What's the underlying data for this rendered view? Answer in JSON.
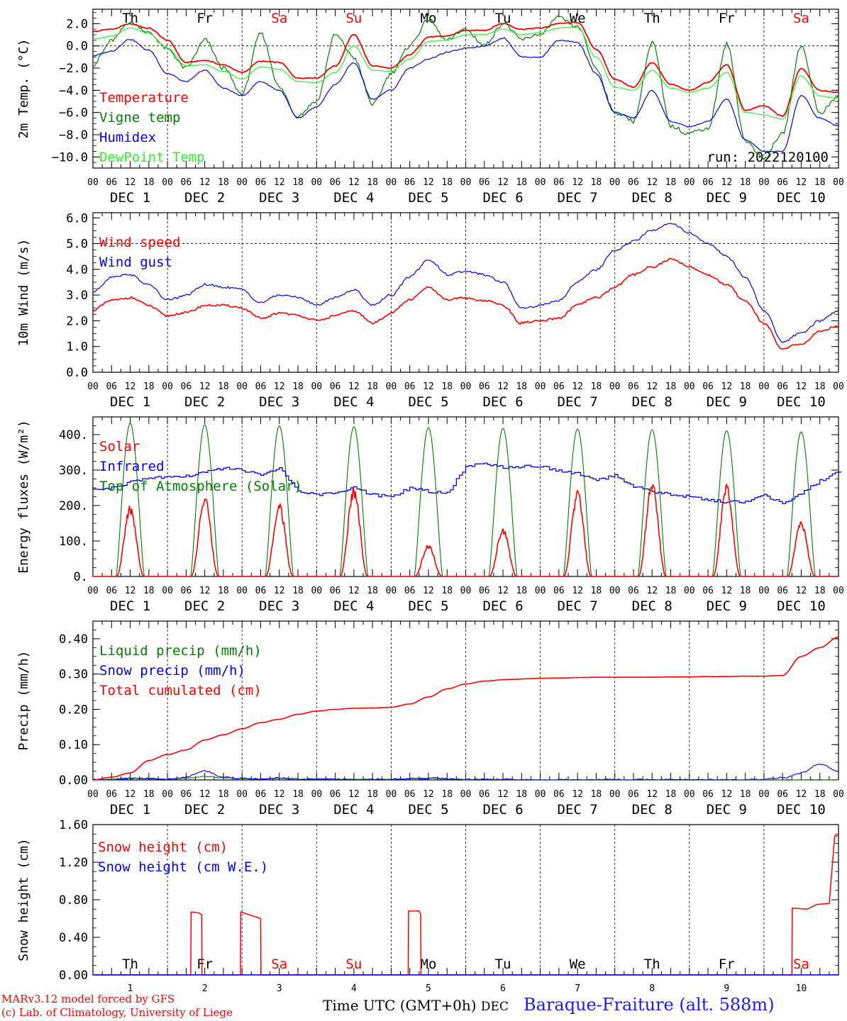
{
  "footer": {
    "model_credit": "MARv3.12 model forced by GFS",
    "lab_credit": "(c) Lab. of Climatology, University of Liege",
    "time_label": "Time UTC (GMT+0h)",
    "dec_label": "DEC",
    "station": "Baraque-Fraiture (alt. 588m)"
  },
  "run_label": "run: 2022120100",
  "hour_ticks": [
    "00",
    "06",
    "12",
    "18"
  ],
  "end_tick": "00",
  "day_labels": [
    "DEC  1",
    "DEC  2",
    "DEC  3",
    "DEC  4",
    "DEC  5",
    "DEC  6",
    "DEC  7",
    "DEC  8",
    "DEC  9",
    "DEC 10"
  ],
  "weekdays": [
    {
      "label": "Th",
      "color": "#000000"
    },
    {
      "label": "Fr",
      "color": "#000000"
    },
    {
      "label": "Sa",
      "color": "#ff0000"
    },
    {
      "label": "Su",
      "color": "#ff0000"
    },
    {
      "label": "Mo",
      "color": "#000000"
    },
    {
      "label": "Tu",
      "color": "#000000"
    },
    {
      "label": "We",
      "color": "#000000"
    },
    {
      "label": "Th",
      "color": "#000000"
    },
    {
      "label": "Fr",
      "color": "#000000"
    },
    {
      "label": "Sa",
      "color": "#ff0000"
    }
  ],
  "day_numbers": [
    "1",
    "2",
    "3",
    "4",
    "5",
    "6",
    "7",
    "8",
    "9",
    "10"
  ],
  "chart_data": [
    {
      "type": "line",
      "ylabel": "2m Temp. (°C)",
      "ylim": [
        -11,
        3.3
      ],
      "yticks": [
        2.0,
        0.0,
        -2.0,
        -4.0,
        -6.0,
        -8.0,
        -10.0
      ],
      "ytick_labels": [
        "2.0",
        "0.0",
        "−2.0",
        "−4.0",
        "−6.0",
        "−8.0",
        "−10.0"
      ],
      "reference_line": 0,
      "x_hours": [
        0,
        6,
        12,
        18,
        24,
        30,
        36,
        42,
        48,
        54,
        60,
        66,
        72,
        78,
        84,
        90,
        96,
        102,
        108,
        114,
        120,
        126,
        132,
        138,
        144,
        150,
        156,
        162,
        168,
        174,
        180,
        186,
        192,
        198,
        204,
        210,
        216,
        222,
        228,
        234,
        240
      ],
      "series": [
        {
          "name": "Temperature",
          "color": "#ff0000",
          "values": [
            1.3,
            1.5,
            2.0,
            1.6,
            0.5,
            -1.5,
            -1.3,
            -1.7,
            -2.4,
            -1.4,
            -1.5,
            -2.9,
            -2.9,
            -1.8,
            1.0,
            -1.8,
            -2.0,
            -0.8,
            0.8,
            0.9,
            1.4,
            1.4,
            2.0,
            1.5,
            1.6,
            2.0,
            2.1,
            -0.3,
            -3.0,
            -3.7,
            -1.5,
            -3.5,
            -4.0,
            -3.3,
            -1.7,
            -5.8,
            -5.4,
            -6.3,
            -2.0,
            -4.0,
            -4.2
          ]
        },
        {
          "name": "Vigne temp",
          "color": "#008000",
          "values": [
            -1.8,
            0.5,
            2.2,
            1.2,
            -0.3,
            -2.0,
            0.5,
            -2.1,
            -4.3,
            1.2,
            -3.7,
            -6.3,
            -5.0,
            1.0,
            -1.0,
            -5.3,
            -2.5,
            0.0,
            2.3,
            0.5,
            1.5,
            0.0,
            2.0,
            0.5,
            1.0,
            2.6,
            1.7,
            -2.0,
            -6.0,
            -6.8,
            0.3,
            -7.2,
            -7.8,
            -7.5,
            0.1,
            -8.5,
            -10.0,
            -8.0,
            0.0,
            -6.0,
            -4.5
          ]
        },
        {
          "name": "Humidex",
          "color": "#0000ff",
          "values": [
            -0.9,
            -0.5,
            0.6,
            -0.4,
            -2.5,
            -3.2,
            -2.2,
            -3.8,
            -4.5,
            -3.2,
            -4.0,
            -6.5,
            -5.5,
            -3.5,
            -1.5,
            -4.8,
            -4.0,
            -2.0,
            -1.2,
            -0.6,
            -0.2,
            0.0,
            0.7,
            -1.0,
            -1.0,
            0.5,
            0.3,
            -2.5,
            -6.0,
            -6.5,
            -4.0,
            -6.8,
            -7.3,
            -6.8,
            -4.8,
            -8.5,
            -9.5,
            -9.5,
            -4.5,
            -6.5,
            -7.2
          ]
        },
        {
          "name": "DewPoint Temp",
          "color": "#33ee33",
          "values": [
            0.6,
            0.9,
            1.6,
            1.1,
            -0.2,
            -1.8,
            -1.7,
            -2.3,
            -3.0,
            -1.9,
            -2.1,
            -3.2,
            -3.3,
            -2.4,
            0.0,
            -2.2,
            -2.3,
            -1.2,
            0.4,
            0.5,
            1.0,
            1.0,
            1.5,
            1.0,
            1.2,
            1.6,
            1.7,
            -1.0,
            -3.7,
            -4.0,
            -2.2,
            -3.8,
            -4.2,
            -3.8,
            -2.4,
            -6.0,
            -6.2,
            -6.6,
            -2.7,
            -4.5,
            -4.7
          ]
        }
      ]
    },
    {
      "type": "line",
      "ylabel": "10m Wind (m/s)",
      "ylim": [
        0,
        6.2
      ],
      "yticks": [
        0,
        1,
        2,
        3,
        4,
        5,
        6
      ],
      "ytick_labels": [
        "0.0",
        "1.0",
        "2.0",
        "3.0",
        "4.0",
        "5.0",
        "6.0"
      ],
      "reference_line": 5,
      "x_hours": [
        0,
        6,
        12,
        18,
        24,
        30,
        36,
        42,
        48,
        54,
        60,
        66,
        72,
        78,
        84,
        90,
        96,
        102,
        108,
        114,
        120,
        126,
        132,
        138,
        144,
        150,
        156,
        162,
        168,
        174,
        180,
        186,
        192,
        198,
        204,
        210,
        216,
        222,
        228,
        234,
        240
      ],
      "series": [
        {
          "name": "Wind speed",
          "color": "#ff0000",
          "values": [
            2.4,
            2.8,
            2.9,
            2.6,
            2.2,
            2.3,
            2.6,
            2.6,
            2.5,
            2.1,
            2.3,
            2.2,
            2.0,
            2.2,
            2.4,
            1.9,
            2.3,
            2.8,
            3.3,
            2.8,
            2.9,
            2.8,
            2.6,
            1.9,
            2.0,
            2.1,
            2.6,
            2.9,
            3.3,
            3.8,
            4.1,
            4.4,
            4.1,
            3.8,
            3.4,
            2.8,
            1.9,
            0.9,
            1.1,
            1.6,
            1.8
          ]
        },
        {
          "name": "Wind gust",
          "color": "#0000ff",
          "values": [
            3.1,
            3.7,
            3.8,
            3.4,
            2.8,
            3.0,
            3.4,
            3.3,
            3.2,
            2.7,
            3.0,
            2.9,
            2.6,
            2.9,
            3.2,
            2.6,
            3.0,
            3.7,
            4.4,
            3.8,
            3.9,
            3.8,
            3.5,
            2.5,
            2.6,
            2.8,
            3.5,
            4.0,
            4.7,
            5.1,
            5.5,
            5.8,
            5.4,
            5.0,
            4.5,
            3.7,
            2.4,
            1.2,
            1.5,
            2.0,
            2.4
          ]
        }
      ]
    },
    {
      "type": "line",
      "ylabel": "Energy fluxes (W/m²)",
      "ylim": [
        0,
        450
      ],
      "yticks": [
        0,
        100,
        200,
        300,
        400
      ],
      "ytick_labels": [
        "0.",
        "100.",
        "200.",
        "300.",
        "400."
      ],
      "daily_peaks": {
        "toa_solar": [
          432,
          428,
          425,
          422,
          420,
          418,
          416,
          414,
          411,
          408
        ],
        "solar": [
          190,
          215,
          195,
          240,
          85,
          130,
          230,
          260,
          245,
          150
        ]
      },
      "daylight_hours": [
        7.5,
        16.5
      ],
      "x_hours": [
        0,
        6,
        12,
        18,
        24,
        30,
        36,
        42,
        48,
        54,
        60,
        66,
        72,
        78,
        84,
        90,
        96,
        102,
        108,
        114,
        120,
        126,
        132,
        138,
        144,
        150,
        156,
        162,
        168,
        174,
        180,
        186,
        192,
        198,
        204,
        210,
        216,
        222,
        228,
        234,
        240
      ],
      "series": [
        {
          "name": "Solar",
          "color": "#ff0000"
        },
        {
          "name": "Infrared",
          "color": "#0000ff",
          "values": [
            245,
            250,
            265,
            278,
            280,
            282,
            295,
            305,
            300,
            285,
            305,
            240,
            230,
            235,
            250,
            230,
            225,
            250,
            240,
            235,
            310,
            318,
            308,
            310,
            310,
            298,
            290,
            270,
            285,
            255,
            240,
            230,
            225,
            215,
            210,
            210,
            230,
            205,
            235,
            270,
            295
          ]
        },
        {
          "name": "Top of Atmosphere (Solar)",
          "color": "#008000"
        }
      ]
    },
    {
      "type": "line",
      "ylabel": "Precip (mm/h)",
      "ylim": [
        0,
        0.45
      ],
      "yticks": [
        0,
        0.1,
        0.2,
        0.3,
        0.4
      ],
      "ytick_labels": [
        "0.00",
        "0.10",
        "0.20",
        "0.30",
        "0.40"
      ],
      "x_hours": [
        0,
        6,
        12,
        18,
        24,
        30,
        36,
        42,
        48,
        54,
        60,
        66,
        72,
        78,
        84,
        90,
        96,
        102,
        108,
        114,
        120,
        126,
        132,
        138,
        144,
        150,
        156,
        162,
        168,
        174,
        180,
        186,
        192,
        198,
        204,
        210,
        216,
        222,
        228,
        234,
        240
      ],
      "series": [
        {
          "name": "Liquid precip (mm/h)",
          "color": "#008000",
          "values": [
            0,
            0.002,
            0.006,
            0.003,
            0.002,
            0.005,
            0.01,
            0.006,
            0.004,
            0.002,
            0.004,
            0.002,
            0.003,
            0.002,
            0.002,
            0.001,
            0.002,
            0.004,
            0.005,
            0.003,
            0.001,
            0.002,
            0.001,
            0.001,
            0,
            0,
            0,
            0,
            0,
            0,
            0,
            0,
            0,
            0,
            0,
            0,
            0,
            0,
            0,
            0,
            0
          ]
        },
        {
          "name": "Snow precip (mm/h)",
          "color": "#0000ff",
          "values": [
            0,
            0,
            0.003,
            0.004,
            0.002,
            0.008,
            0.025,
            0.008,
            0.005,
            0.003,
            0.006,
            0.003,
            0.002,
            0.002,
            0.001,
            0.001,
            0.001,
            0.003,
            0.005,
            0.004,
            0.002,
            0.002,
            0.001,
            0.001,
            0,
            0,
            0,
            0,
            0,
            0,
            0,
            0,
            0,
            0,
            0,
            0,
            0.002,
            0.006,
            0.02,
            0.045,
            0.025
          ]
        },
        {
          "name": "Total cumulated (cm)",
          "color": "#ff0000",
          "values": [
            0,
            0.008,
            0.02,
            0.055,
            0.072,
            0.085,
            0.113,
            0.128,
            0.145,
            0.162,
            0.172,
            0.186,
            0.195,
            0.2,
            0.203,
            0.204,
            0.206,
            0.215,
            0.235,
            0.258,
            0.272,
            0.28,
            0.284,
            0.286,
            0.288,
            0.289,
            0.29,
            0.291,
            0.291,
            0.291,
            0.291,
            0.292,
            0.292,
            0.293,
            0.293,
            0.294,
            0.294,
            0.296,
            0.35,
            0.375,
            0.405
          ]
        }
      ]
    },
    {
      "type": "line",
      "ylabel": "Snow height (cm)",
      "ylim": [
        0,
        1.6
      ],
      "yticks": [
        0,
        0.4,
        0.8,
        1.2,
        1.6
      ],
      "ytick_labels": [
        "0.00",
        "0.40",
        "0.80",
        "1.20",
        "1.60"
      ],
      "series": [
        {
          "name": "Snow height (cm)",
          "color": "#ff0000",
          "points": [
            [
              0,
              0
            ],
            [
              31.5,
              0
            ],
            [
              31.6,
              0.67
            ],
            [
              34,
              0.66
            ],
            [
              35,
              0.64
            ],
            [
              35.1,
              0
            ],
            [
              47.5,
              0
            ],
            [
              47.6,
              0.67
            ],
            [
              54,
              0.6
            ],
            [
              54.1,
              0
            ],
            [
              101.5,
              0
            ],
            [
              101.6,
              0.68
            ],
            [
              105,
              0.68
            ],
            [
              105.5,
              0.65
            ],
            [
              105.6,
              0
            ],
            [
              225,
              0
            ],
            [
              225.1,
              0.71
            ],
            [
              230,
              0.7
            ],
            [
              233,
              0.75
            ],
            [
              237,
              0.76
            ],
            [
              238.8,
              1.48
            ],
            [
              240,
              1.48
            ]
          ]
        },
        {
          "name": "Snow height (cm W.E.)",
          "color": "#0000ff",
          "points": [
            [
              0,
              0
            ],
            [
              240,
              0
            ]
          ]
        }
      ]
    }
  ]
}
